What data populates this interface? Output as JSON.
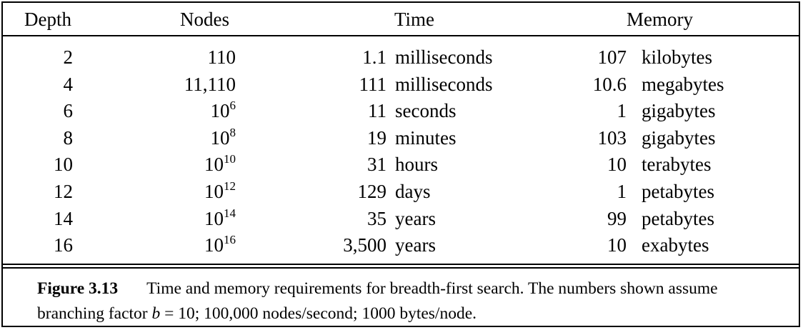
{
  "table": {
    "headers": {
      "depth": "Depth",
      "nodes": "Nodes",
      "time": "Time",
      "memory": "Memory"
    },
    "rows": [
      {
        "depth": "2",
        "nodes_base": "110",
        "nodes_exp": "",
        "time_value": "1.1",
        "time_unit": "milliseconds",
        "memory_value": "107",
        "memory_unit": "kilobytes"
      },
      {
        "depth": "4",
        "nodes_base": "11,110",
        "nodes_exp": "",
        "time_value": "111",
        "time_unit": "milliseconds",
        "memory_value": "10.6",
        "memory_unit": "megabytes"
      },
      {
        "depth": "6",
        "nodes_base": "10",
        "nodes_exp": "6",
        "time_value": "11",
        "time_unit": "seconds",
        "memory_value": "1",
        "memory_unit": "gigabytes"
      },
      {
        "depth": "8",
        "nodes_base": "10",
        "nodes_exp": "8",
        "time_value": "19",
        "time_unit": "minutes",
        "memory_value": "103",
        "memory_unit": "gigabytes"
      },
      {
        "depth": "10",
        "nodes_base": "10",
        "nodes_exp": "10",
        "time_value": "31",
        "time_unit": "hours",
        "memory_value": "10",
        "memory_unit": "terabytes"
      },
      {
        "depth": "12",
        "nodes_base": "10",
        "nodes_exp": "12",
        "time_value": "129",
        "time_unit": "days",
        "memory_value": "1",
        "memory_unit": "petabytes"
      },
      {
        "depth": "14",
        "nodes_base": "10",
        "nodes_exp": "14",
        "time_value": "35",
        "time_unit": "years",
        "memory_value": "99",
        "memory_unit": "petabytes"
      },
      {
        "depth": "16",
        "nodes_base": "10",
        "nodes_exp": "16",
        "time_value": "3,500",
        "time_unit": "years",
        "memory_value": "10",
        "memory_unit": "exabytes"
      }
    ]
  },
  "caption": {
    "label": "Figure 3.13",
    "text_before_var": "Time and memory requirements for breadth-first search. The numbers shown assume branching factor ",
    "variable": "b",
    "text_after_var": " = 10; 100,000 nodes/second; 1000 bytes/node."
  }
}
